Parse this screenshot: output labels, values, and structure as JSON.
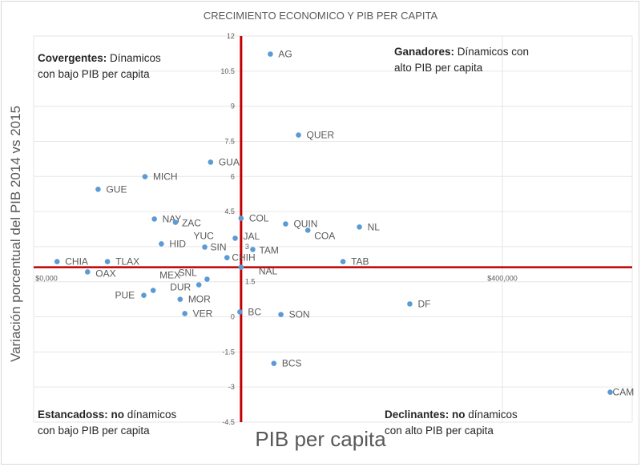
{
  "chart_data": {
    "type": "scatter",
    "title": "CRECIMIENTO ECONOMICO Y PIB PER CAPITA",
    "xlabel": "PIB per capita",
    "ylabel": "Variación porcentual del PIB 2014 vs 2015",
    "xlim": [
      0,
      500000
    ],
    "ylim": [
      -4.5,
      12
    ],
    "y_ticks": [
      12,
      10.5,
      9,
      7.5,
      6,
      4.5,
      3,
      1.5,
      0,
      -1.5,
      -3,
      -4.5
    ],
    "y_tick_labels": [
      "12",
      "10.5",
      "9",
      "7.5",
      "6",
      "4.5",
      "3",
      "1.5",
      "0",
      "-1.5",
      "-3",
      "-4.5"
    ],
    "x_ticks": [
      0,
      400000
    ],
    "x_tick_labels": [
      "$0,000",
      "$400,000"
    ],
    "grid": true,
    "reference_lines": {
      "x": 177000,
      "y": 2.12,
      "color": "#c00000"
    },
    "point_color": "#5b9bd5",
    "points": [
      {
        "label": "AG",
        "x": 202000,
        "y": 11.23
      },
      {
        "label": "QUER",
        "x": 226000,
        "y": 7.77
      },
      {
        "label": "GUA",
        "x": 151000,
        "y": 6.61
      },
      {
        "label": "MICH",
        "x": 95000,
        "y": 5.99
      },
      {
        "label": "GUE",
        "x": 55000,
        "y": 5.45
      },
      {
        "label": "COL",
        "x": 177000,
        "y": 4.21
      },
      {
        "label": "QUIN",
        "x": 215000,
        "y": 3.97
      },
      {
        "label": "COA",
        "x": 234000,
        "y": 3.7
      },
      {
        "label": "NL",
        "x": 278000,
        "y": 3.84
      },
      {
        "label": "NAY",
        "x": 103000,
        "y": 4.18
      },
      {
        "label": "ZAC",
        "x": 121000,
        "y": 4.04
      },
      {
        "label": "JAL",
        "x": 172000,
        "y": 3.36
      },
      {
        "label": "HID",
        "x": 109000,
        "y": 3.12
      },
      {
        "label": "SIN",
        "x": 146000,
        "y": 2.98
      },
      {
        "label": "YUC",
        "x": 146000,
        "y": 2.98
      },
      {
        "label": "TAM",
        "x": 187000,
        "y": 2.88
      },
      {
        "label": "CHIH",
        "x": 165000,
        "y": 2.53
      },
      {
        "label": "CHIA",
        "x": 20000,
        "y": 2.36
      },
      {
        "label": "TLAX",
        "x": 63000,
        "y": 2.36
      },
      {
        "label": "TAB",
        "x": 264000,
        "y": 2.36
      },
      {
        "label": "NAL",
        "x": 177000,
        "y": 2.12
      },
      {
        "label": "OAX",
        "x": 46000,
        "y": 1.92
      },
      {
        "label": "SNL",
        "x": 148000,
        "y": 1.61
      },
      {
        "label": "DUR",
        "x": 141000,
        "y": 1.37
      },
      {
        "label": "MEX",
        "x": 102000,
        "y": 1.13
      },
      {
        "label": "PUE",
        "x": 94000,
        "y": 0.92
      },
      {
        "label": "MOR",
        "x": 125000,
        "y": 0.75
      },
      {
        "label": "VER",
        "x": 129000,
        "y": 0.14
      },
      {
        "label": "BC",
        "x": 176000,
        "y": 0.21
      },
      {
        "label": "SON",
        "x": 211000,
        "y": 0.1
      },
      {
        "label": "DF",
        "x": 321000,
        "y": 0.55
      },
      {
        "label": "BCS",
        "x": 205000,
        "y": -1.99
      },
      {
        "label": "CAM",
        "x": 492000,
        "y": -3.22
      }
    ],
    "annotations": {
      "top_left": {
        "bold": "Covergentes:",
        "text": " Dínamicos",
        "line2": "con bajo PIB  per capita"
      },
      "top_right": {
        "bold": "Ganadores:",
        "text": " Dínamicos con",
        "line2": "alto  PIB  per capita"
      },
      "bottom_left": {
        "bold": "Estancadoss: no",
        "text": " dínamicos",
        "line2": "con bajo  PIB  per capita"
      },
      "bottom_right": {
        "bold": "Declinantes: no",
        "text": " dínamicos",
        "line2": "con alto  PIB  per capita"
      }
    }
  }
}
